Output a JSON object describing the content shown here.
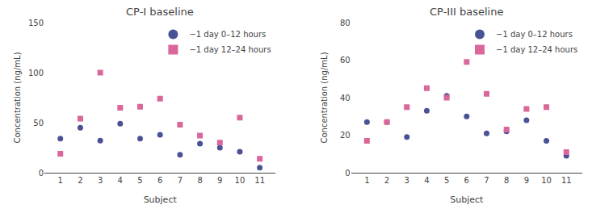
{
  "chart_data": [
    {
      "type": "scatter",
      "title": "CP-I baseline",
      "xlabel": "Subject",
      "ylabel": "Concentration (ng/mL)",
      "x": [
        1,
        2,
        3,
        4,
        5,
        6,
        7,
        8,
        9,
        10,
        11
      ],
      "series": [
        {
          "name": "−1 day 0–12 hours",
          "color": "#4a5296",
          "marker": "circle",
          "values": [
            34,
            45,
            32,
            49,
            34,
            38,
            18,
            29,
            25,
            21,
            5
          ]
        },
        {
          "name": "−1 day 12–24 hours",
          "color": "#d9679a",
          "marker": "square",
          "values": [
            19,
            54,
            100,
            65,
            66,
            74,
            48,
            37,
            30,
            55,
            14
          ]
        }
      ],
      "xlim": [
        0.2,
        11.8
      ],
      "xticks": [
        1,
        2,
        3,
        4,
        5,
        6,
        7,
        8,
        9,
        10,
        11
      ],
      "ylim": [
        0,
        150
      ],
      "yticks": [
        0,
        50,
        100,
        150
      ],
      "grid": false,
      "legend": "upper right"
    },
    {
      "type": "scatter",
      "title": "CP-III baseline",
      "xlabel": "Subject",
      "ylabel": "Concentration (ng/mL)",
      "x": [
        1,
        2,
        3,
        4,
        5,
        6,
        7,
        8,
        9,
        10,
        11
      ],
      "series": [
        {
          "name": "−1 day 0–12 hours",
          "color": "#4a5296",
          "marker": "circle",
          "values": [
            27,
            27,
            19,
            33,
            41,
            30,
            21,
            22,
            28,
            17,
            9
          ]
        },
        {
          "name": "−1 day 12–24 hours",
          "color": "#d9679a",
          "marker": "square",
          "values": [
            17,
            27,
            35,
            45,
            40,
            59,
            42,
            23,
            34,
            35,
            11
          ]
        }
      ],
      "xlim": [
        0.2,
        11.8
      ],
      "xticks": [
        1,
        2,
        3,
        4,
        5,
        6,
        7,
        8,
        9,
        10,
        11
      ],
      "ylim": [
        0,
        80
      ],
      "yticks": [
        0,
        20,
        40,
        60,
        80
      ],
      "grid": false,
      "legend": "upper right"
    }
  ]
}
